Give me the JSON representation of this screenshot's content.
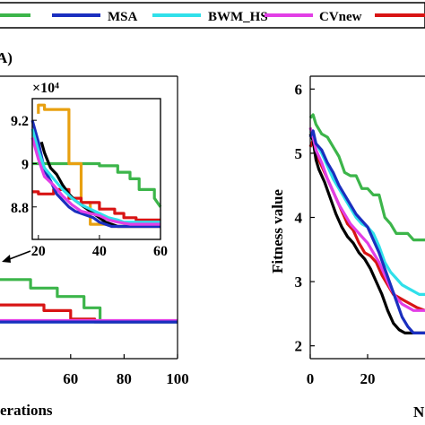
{
  "legend": {
    "entries": [
      {
        "name": "",
        "color": "#3cb54a"
      },
      {
        "name": "MSA",
        "color": "#1a2fbf"
      },
      {
        "name": "BWM_HS",
        "color": "#30e0ea"
      },
      {
        "name": "CVnew",
        "color": "#e23fe6"
      },
      {
        "name": "",
        "color": "#d81414"
      }
    ]
  },
  "chart_data": [
    {
      "type": "line",
      "panel_label": "A)",
      "xlabel": "erations",
      "ylabel": "",
      "xlim": [
        0,
        100
      ],
      "xticks": [
        "60",
        "80",
        "100"
      ],
      "ylim": [
        0,
        10
      ],
      "series": [
        {
          "color": "#3cb54a",
          "x": [
            0,
            45,
            45,
            55,
            55,
            65,
            65,
            71,
            71,
            100
          ],
          "y": [
            2.8,
            2.8,
            2.5,
            2.5,
            2.2,
            2.2,
            1.8,
            1.8,
            1.3,
            1.3
          ]
        },
        {
          "color": "#d81414",
          "x": [
            0,
            50,
            50,
            60,
            60,
            69,
            69,
            100
          ],
          "y": [
            1.9,
            1.9,
            1.7,
            1.7,
            1.4,
            1.4,
            1.3,
            1.3
          ]
        },
        {
          "color": "#30e0ea",
          "x": [
            0,
            100
          ],
          "y": [
            1.3,
            1.3
          ]
        },
        {
          "color": "#e23fe6",
          "x": [
            0,
            100
          ],
          "y": [
            1.35,
            1.35
          ]
        },
        {
          "color": "#1a2fbf",
          "x": [
            0,
            100
          ],
          "y": [
            1.3,
            1.3
          ]
        }
      ],
      "inset": {
        "exponent_label": "×10⁴",
        "xlim": [
          18,
          60
        ],
        "ylim": [
          8.65,
          9.3
        ],
        "xticks": [
          "20",
          "40",
          "60"
        ],
        "yticks": [
          "8.8",
          "9",
          "9.2"
        ],
        "series": [
          {
            "color": "#3cb54a",
            "x": [
              18,
              40,
              40,
              46,
              46,
              50,
              50,
              53,
              53,
              58,
              58,
              60
            ],
            "y": [
              9.0,
              9.0,
              8.99,
              8.99,
              8.96,
              8.96,
              8.93,
              8.93,
              8.88,
              8.88,
              8.84,
              8.8
            ]
          },
          {
            "color": "#e8a010",
            "x": [
              20,
              20,
              22,
              22,
              30,
              30,
              34,
              34,
              37,
              37,
              44,
              44,
              60
            ],
            "y": [
              9.23,
              9.27,
              9.27,
              9.25,
              9.25,
              9.0,
              9.0,
              8.82,
              8.82,
              8.72,
              8.72,
              8.71,
              8.71
            ]
          },
          {
            "color": "#d81414",
            "x": [
              18,
              20,
              20,
              25,
              25,
              30,
              30,
              34,
              34,
              40,
              40,
              45,
              45,
              48,
              48,
              52,
              52,
              60
            ],
            "y": [
              8.87,
              8.87,
              8.86,
              8.86,
              8.88,
              8.88,
              8.84,
              8.84,
              8.82,
              8.82,
              8.79,
              8.79,
              8.77,
              8.77,
              8.75,
              8.75,
              8.74,
              8.74
            ]
          },
          {
            "color": "#000000",
            "x": [
              21,
              22,
              24,
              26,
              28,
              30,
              32,
              34,
              36,
              38,
              40,
              42,
              44,
              46,
              48,
              50,
              52,
              60
            ],
            "y": [
              9.1,
              9.05,
              8.98,
              8.95,
              8.9,
              8.86,
              8.83,
              8.81,
              8.79,
              8.77,
              8.75,
              8.73,
              8.72,
              8.71,
              8.71,
              8.71,
              8.71,
              8.71
            ]
          },
          {
            "color": "#1a2fbf",
            "x": [
              18,
              20,
              22,
              24,
              26,
              28,
              30,
              32,
              34,
              36,
              38,
              40,
              42,
              44,
              46,
              48,
              50,
              52,
              60
            ],
            "y": [
              9.2,
              9.1,
              8.97,
              8.92,
              8.86,
              8.83,
              8.8,
              8.78,
              8.77,
              8.76,
              8.75,
              8.73,
              8.72,
              8.71,
              8.71,
              8.71,
              8.71,
              8.71,
              8.71
            ]
          },
          {
            "color": "#30e0ea",
            "x": [
              18,
              20,
              22,
              25,
              28,
              31,
              34,
              37,
              40,
              43,
              46,
              48,
              52,
              60
            ],
            "y": [
              9.16,
              9.06,
              8.98,
              8.93,
              8.88,
              8.84,
              8.81,
              8.79,
              8.77,
              8.75,
              8.74,
              8.73,
              8.73,
              8.73
            ]
          },
          {
            "color": "#e23fe6",
            "x": [
              18,
              20,
              22,
              25,
              28,
              31,
              34,
              37,
              40,
              43,
              46,
              50,
              54,
              60
            ],
            "y": [
              9.12,
              9.02,
              8.94,
              8.9,
              8.85,
              8.81,
              8.78,
              8.77,
              8.76,
              8.74,
              8.73,
              8.72,
              8.72,
              8.72
            ]
          }
        ]
      }
    },
    {
      "type": "line",
      "panel_label": "",
      "xlabel": "N",
      "ylabel": "Fitness value",
      "xlim": [
        0,
        40
      ],
      "xticks": [
        "0",
        "20"
      ],
      "ylim": [
        1.8,
        6.2
      ],
      "yticks": [
        "2",
        "3",
        "4",
        "5",
        "6"
      ],
      "series": [
        {
          "color": "#3cb54a",
          "x": [
            0,
            1,
            2,
            4,
            6,
            8,
            10,
            12,
            14,
            16,
            18,
            20,
            22,
            24,
            26,
            28,
            30,
            32,
            34,
            36,
            38,
            40
          ],
          "y": [
            5.55,
            5.6,
            5.45,
            5.3,
            5.25,
            5.1,
            4.95,
            4.7,
            4.65,
            4.65,
            4.45,
            4.45,
            4.35,
            4.35,
            4.0,
            3.9,
            3.75,
            3.75,
            3.75,
            3.65,
            3.65,
            3.65
          ]
        },
        {
          "color": "#d81414",
          "x": [
            0,
            1,
            2,
            3,
            5,
            7,
            9,
            11,
            13,
            15,
            17,
            19,
            21,
            23,
            25,
            27,
            29,
            31,
            33,
            35,
            37,
            40
          ],
          "y": [
            5.1,
            5.2,
            5.05,
            4.9,
            4.7,
            4.5,
            4.3,
            4.1,
            3.9,
            3.8,
            3.6,
            3.45,
            3.4,
            3.3,
            3.1,
            2.95,
            2.8,
            2.75,
            2.7,
            2.65,
            2.6,
            2.55
          ]
        },
        {
          "color": "#000000",
          "x": [
            0,
            1,
            2,
            3,
            5,
            7,
            9,
            11,
            13,
            15,
            17,
            19,
            21,
            23,
            25,
            27,
            29,
            31,
            33,
            35,
            37,
            40
          ],
          "y": [
            5.3,
            5.2,
            4.9,
            4.75,
            4.55,
            4.3,
            4.05,
            3.85,
            3.7,
            3.6,
            3.45,
            3.35,
            3.2,
            3.0,
            2.8,
            2.55,
            2.35,
            2.25,
            2.2,
            2.2,
            2.2,
            2.2
          ]
        },
        {
          "color": "#30e0ea",
          "x": [
            0,
            1,
            2,
            4,
            6,
            8,
            10,
            12,
            14,
            16,
            18,
            20,
            22,
            24,
            26,
            28,
            30,
            32,
            34,
            36,
            38,
            40
          ],
          "y": [
            5.35,
            5.3,
            5.15,
            5.0,
            4.8,
            4.6,
            4.45,
            4.3,
            4.15,
            4.0,
            3.9,
            3.85,
            3.75,
            3.55,
            3.3,
            3.15,
            3.05,
            2.95,
            2.9,
            2.85,
            2.8,
            2.8
          ]
        },
        {
          "color": "#e23fe6",
          "x": [
            0,
            1,
            2,
            4,
            6,
            8,
            10,
            12,
            14,
            16,
            18,
            20,
            22,
            24,
            26,
            28,
            30,
            32,
            34,
            36,
            38,
            40
          ],
          "y": [
            5.4,
            5.25,
            5.05,
            4.85,
            4.6,
            4.4,
            4.2,
            4.05,
            3.9,
            3.8,
            3.7,
            3.6,
            3.45,
            3.3,
            3.1,
            2.9,
            2.75,
            2.65,
            2.6,
            2.55,
            2.55,
            2.55
          ]
        },
        {
          "color": "#1a2fbf",
          "x": [
            0,
            1,
            2,
            4,
            6,
            8,
            10,
            12,
            14,
            16,
            18,
            20,
            22,
            24,
            26,
            28,
            30,
            32,
            34,
            36,
            38,
            40
          ],
          "y": [
            5.25,
            5.35,
            5.15,
            5.05,
            4.85,
            4.7,
            4.5,
            4.35,
            4.2,
            4.05,
            3.95,
            3.85,
            3.65,
            3.45,
            3.2,
            2.95,
            2.7,
            2.45,
            2.3,
            2.2,
            2.2,
            2.2
          ]
        }
      ]
    }
  ]
}
